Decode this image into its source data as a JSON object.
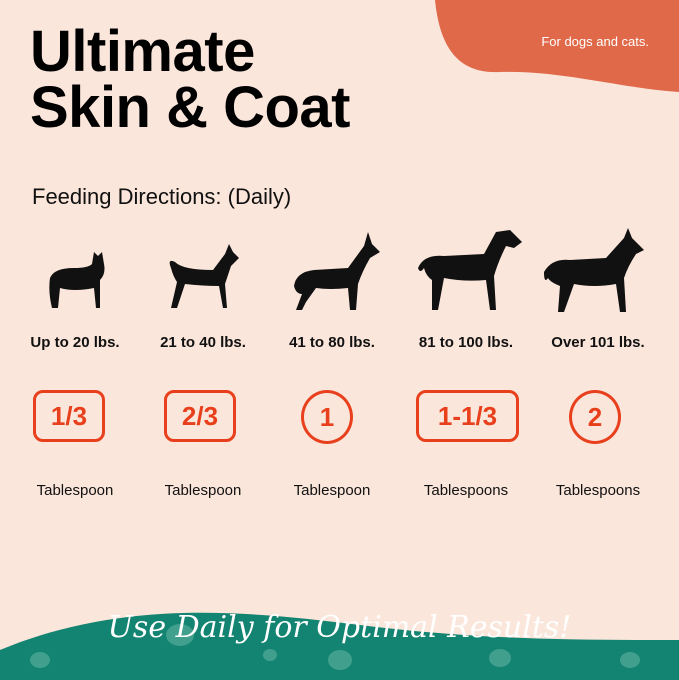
{
  "header": {
    "title_line1": "Ultimate",
    "title_line2": "Skin & Coat",
    "tagline": "For dogs and cats."
  },
  "directions": {
    "heading": "Feeding Directions: (Daily)"
  },
  "columns": [
    {
      "weight": "Up to 20 lbs.",
      "amount": "1/3",
      "unit": "Tablespoon",
      "dog_icon": "french-bulldog-icon"
    },
    {
      "weight": "21 to 40 lbs.",
      "amount": "2/3",
      "unit": "Tablespoon",
      "dog_icon": "basenji-icon"
    },
    {
      "weight": "41 to 80 lbs.",
      "amount": "1",
      "unit": "Tablespoon",
      "dog_icon": "doberman-icon"
    },
    {
      "weight": "81 to 100 lbs.",
      "amount": "1-1/3",
      "unit": "Tablespoons",
      "dog_icon": "pointer-icon"
    },
    {
      "weight": "Over 101 lbs.",
      "amount": "2",
      "unit": "Tablespoons",
      "dog_icon": "great-dane-icon"
    }
  ],
  "footer": {
    "slogan": "Use Daily for Optimal Results!"
  },
  "colors": {
    "background": "#fbe6db",
    "accent_orange": "#e0694a",
    "badge_red": "#e8401c",
    "footer_teal": "#138471"
  }
}
